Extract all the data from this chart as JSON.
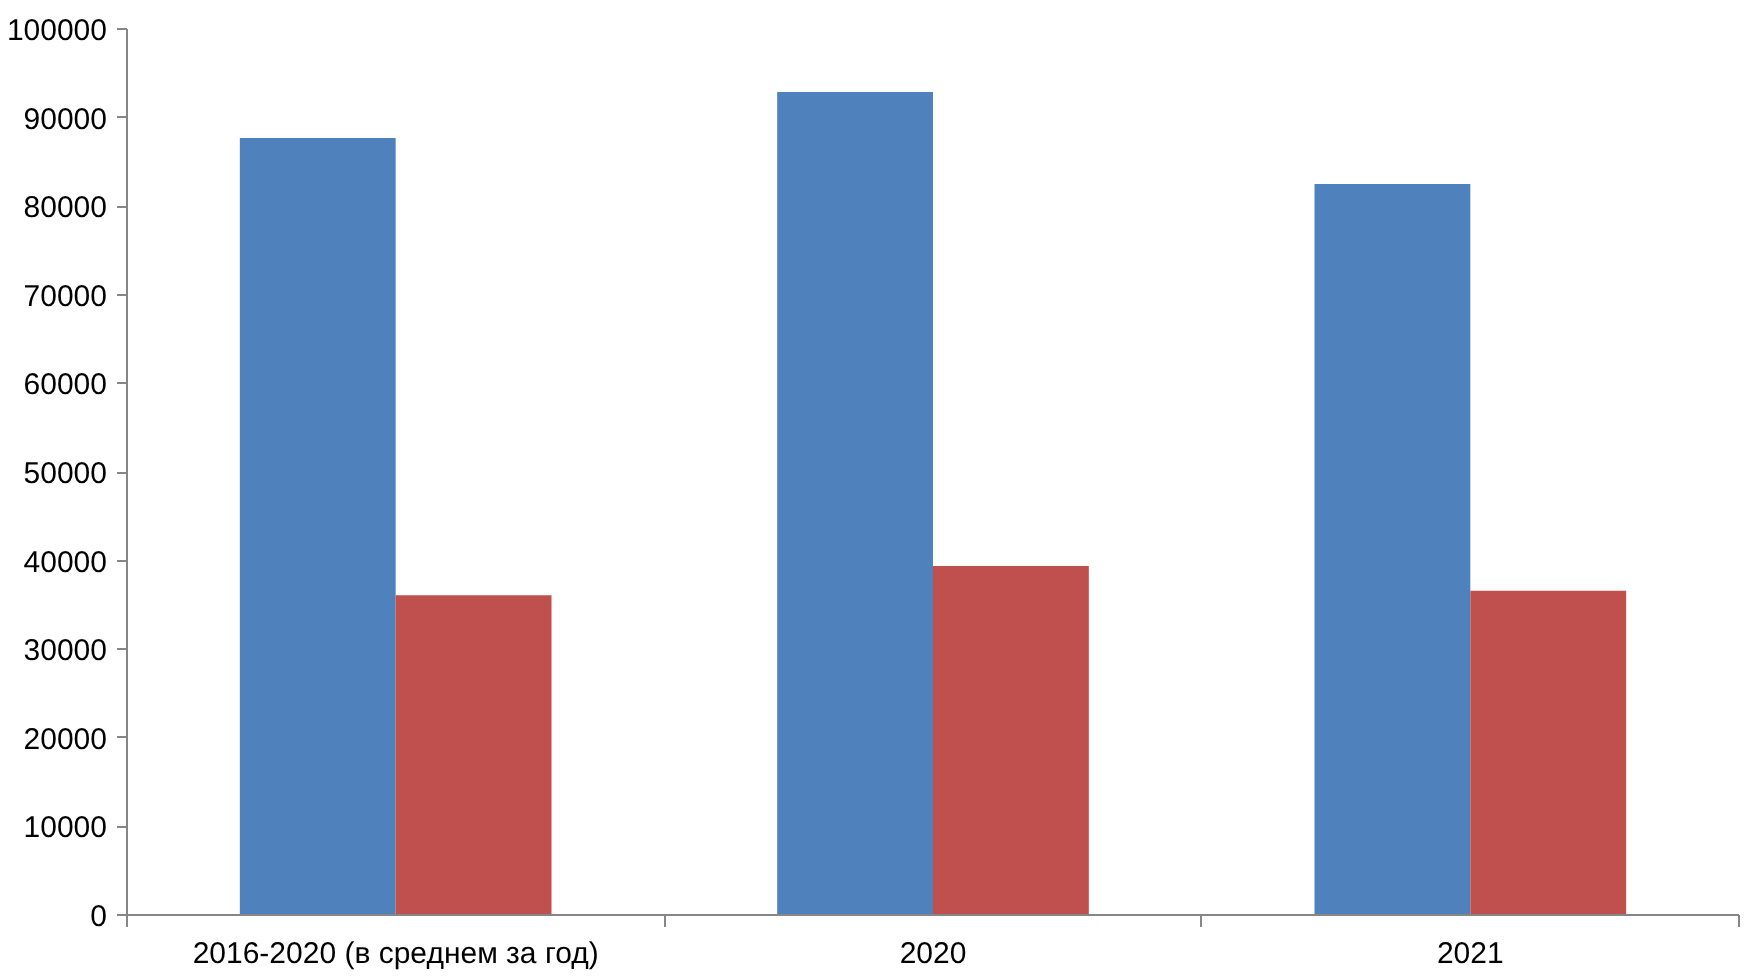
{
  "chart_data": {
    "type": "bar",
    "categories": [
      "2016-2020 (в среднем за год)",
      "2020",
      "2021"
    ],
    "series": [
      {
        "color": "#4f81bd",
        "values": [
          87700,
          92900,
          82500
        ]
      },
      {
        "color": "#c0504d",
        "values": [
          36100,
          39400,
          36600
        ]
      }
    ],
    "ylim": [
      0,
      100000
    ],
    "yticks": [
      0,
      10000,
      20000,
      30000,
      40000,
      50000,
      60000,
      70000,
      80000,
      90000,
      100000
    ],
    "grid": false
  }
}
